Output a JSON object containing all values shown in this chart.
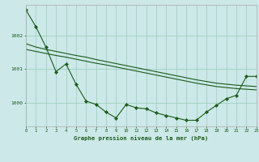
{
  "title": "Graphe pression niveau de la mer (hPa)",
  "bg_color": "#cce8e8",
  "grid_color": "#99ccbb",
  "line_color": "#1a5c1a",
  "x_min": 0,
  "x_max": 23,
  "y_min": 999.3,
  "y_max": 1002.9,
  "y_ticks": [
    1000,
    1001,
    1002
  ],
  "x_ticks": [
    0,
    1,
    2,
    3,
    4,
    5,
    6,
    7,
    8,
    9,
    10,
    11,
    12,
    13,
    14,
    15,
    16,
    17,
    18,
    19,
    20,
    21,
    22,
    23
  ],
  "series1": [
    1002.75,
    1002.25,
    1001.65,
    1000.92,
    1001.15,
    1000.55,
    1000.05,
    999.95,
    999.72,
    999.55,
    999.95,
    999.85,
    999.82,
    999.7,
    999.62,
    999.55,
    999.48,
    999.48,
    999.72,
    999.92,
    1000.12,
    1000.22,
    1000.78,
    1000.78
  ],
  "series2": [
    1001.75,
    1001.65,
    1001.58,
    1001.52,
    1001.46,
    1001.4,
    1001.35,
    1001.28,
    1001.22,
    1001.16,
    1001.1,
    1001.04,
    1000.98,
    1000.92,
    1000.86,
    1000.8,
    1000.74,
    1000.68,
    1000.63,
    1000.58,
    1000.55,
    1000.52,
    1000.5,
    1000.48
  ],
  "series3": [
    1001.58,
    1001.52,
    1001.46,
    1001.4,
    1001.35,
    1001.29,
    1001.23,
    1001.17,
    1001.12,
    1001.06,
    1001.0,
    1000.94,
    1000.88,
    1000.82,
    1000.76,
    1000.7,
    1000.64,
    1000.58,
    1000.53,
    1000.48,
    1000.45,
    1000.42,
    1000.4,
    1000.38
  ]
}
